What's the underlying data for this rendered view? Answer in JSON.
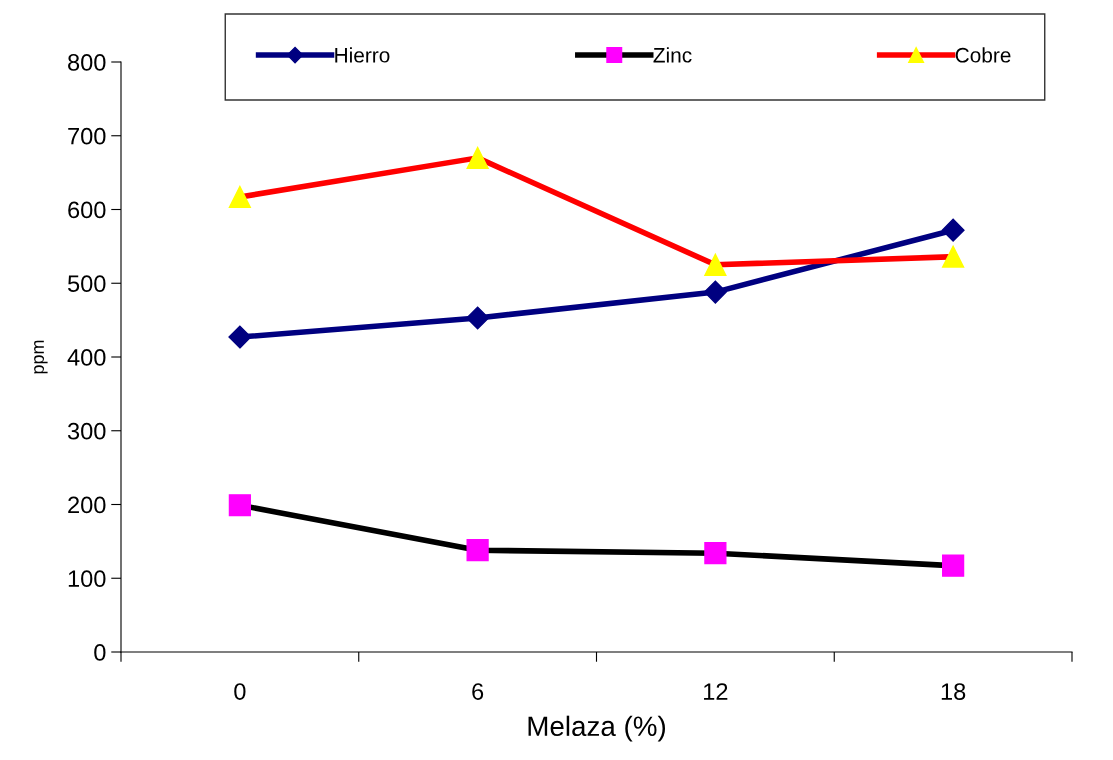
{
  "chart_data": {
    "type": "line",
    "xlabel": "Melaza (%)",
    "ylabel": "ppm",
    "categories": [
      "0",
      "6",
      "12",
      "18"
    ],
    "series": [
      {
        "name": "Hierro",
        "color": "#000080",
        "marker": "diamond",
        "colors": [
          "#000080",
          "#000080",
          "#000080",
          "#000080"
        ],
        "values": [
          427,
          453,
          488,
          572
        ]
      },
      {
        "name": "Zinc",
        "color": "#000000",
        "marker": "square",
        "colors": [
          "#ff00ff",
          "#ff00ff",
          "#ff00ff",
          "#ff00ff"
        ],
        "values": [
          199,
          138,
          134,
          117
        ]
      },
      {
        "name": "Cobre",
        "color": "#ff0000",
        "marker": "triangle",
        "colors": [
          "#ffff00",
          "#ffff00",
          "#ffff00",
          "#ffff00"
        ],
        "values": [
          617,
          670,
          525,
          536
        ]
      }
    ],
    "ylim": [
      0,
      800
    ],
    "yticks": [
      0,
      100,
      200,
      300,
      400,
      500,
      600,
      700,
      800
    ],
    "grid": false,
    "legend": "top"
  }
}
